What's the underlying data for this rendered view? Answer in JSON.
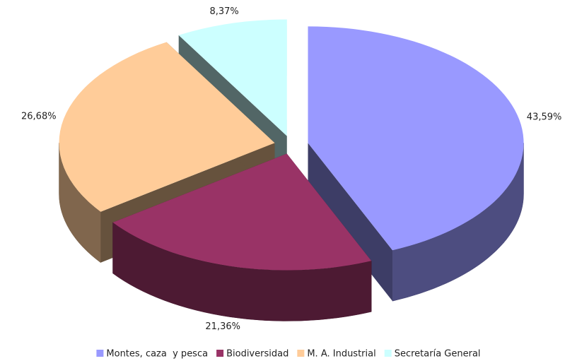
{
  "chart_data": {
    "type": "pie3d",
    "categories": [
      "Montes, caza  y pesca",
      "Biodiversidad",
      "M. A. Industrial",
      "Secretaría General"
    ],
    "values": [
      43.59,
      21.36,
      26.68,
      8.37
    ],
    "value_labels": [
      "43,59%",
      "21,36%",
      "26,68%",
      "8,37%"
    ],
    "colors": [
      "#9999ff",
      "#993366",
      "#ffcc99",
      "#ccffff"
    ],
    "legend": "bottom"
  }
}
